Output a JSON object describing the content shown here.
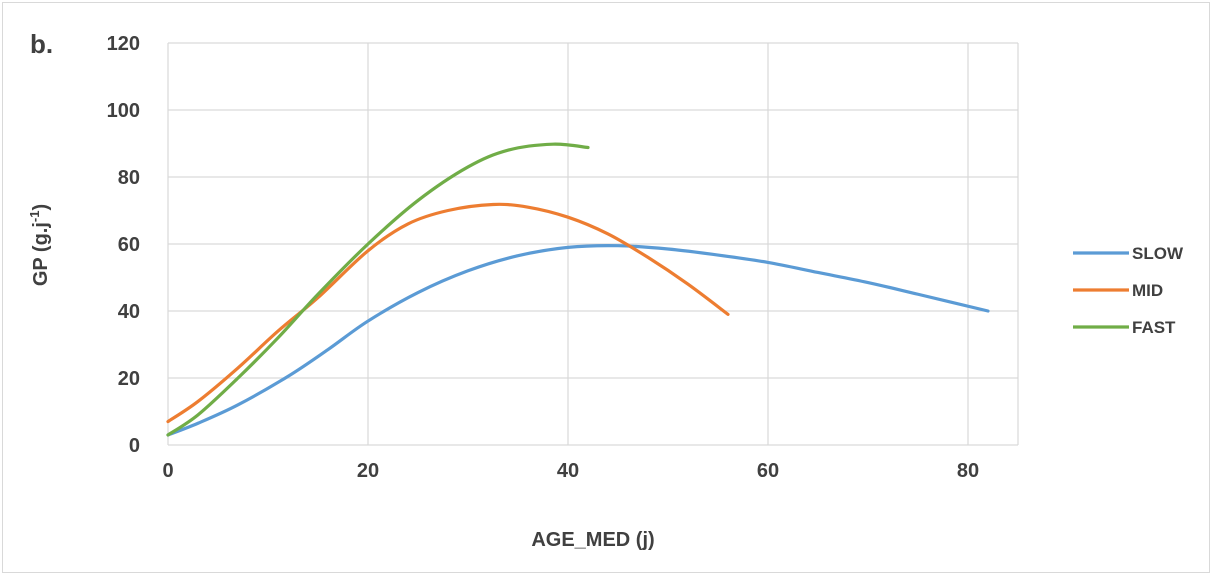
{
  "panel_label": "b.",
  "chart_data": {
    "type": "line",
    "xlabel": "AGE_MED (j)",
    "ylabel": "GP (g.j-1)",
    "ylabel_parts": {
      "main": "GP (g.j",
      "sup": "-1",
      "close": ")"
    },
    "xlim": [
      0,
      85
    ],
    "ylim": [
      0,
      120
    ],
    "xticks": [
      0,
      20,
      40,
      60,
      80
    ],
    "yticks": [
      0,
      20,
      40,
      60,
      80,
      100,
      120
    ],
    "grid": "major gridlines on both axes",
    "legend_position": "right",
    "series": [
      {
        "name": "SLOW",
        "color": "#5b9bd5",
        "points": [
          [
            0,
            3
          ],
          [
            3,
            6.5
          ],
          [
            7,
            12
          ],
          [
            12,
            20.5
          ],
          [
            16,
            28.5
          ],
          [
            20,
            37
          ],
          [
            25,
            45.5
          ],
          [
            30,
            52
          ],
          [
            35,
            56.5
          ],
          [
            40,
            59
          ],
          [
            45,
            59.5
          ],
          [
            50,
            58.5
          ],
          [
            55,
            56.7
          ],
          [
            60,
            54.5
          ],
          [
            65,
            51.5
          ],
          [
            70,
            48.5
          ],
          [
            75,
            45
          ],
          [
            82,
            40
          ]
        ]
      },
      {
        "name": "MID",
        "color": "#ed7d31",
        "points": [
          [
            0,
            7
          ],
          [
            3,
            13
          ],
          [
            7,
            23
          ],
          [
            11,
            34
          ],
          [
            15,
            44
          ],
          [
            20,
            58
          ],
          [
            24,
            66
          ],
          [
            28,
            70
          ],
          [
            32.5,
            71.8
          ],
          [
            36,
            71
          ],
          [
            40,
            68
          ],
          [
            44,
            63
          ],
          [
            48,
            56
          ],
          [
            52,
            48
          ],
          [
            56,
            39
          ]
        ]
      },
      {
        "name": "FAST",
        "color": "#70ad47",
        "points": [
          [
            0,
            3
          ],
          [
            3,
            9
          ],
          [
            7,
            20
          ],
          [
            11,
            32
          ],
          [
            15,
            45
          ],
          [
            20,
            60
          ],
          [
            25,
            73
          ],
          [
            30,
            83
          ],
          [
            34,
            88
          ],
          [
            38.5,
            89.8
          ],
          [
            42,
            88.8
          ]
        ]
      }
    ]
  }
}
